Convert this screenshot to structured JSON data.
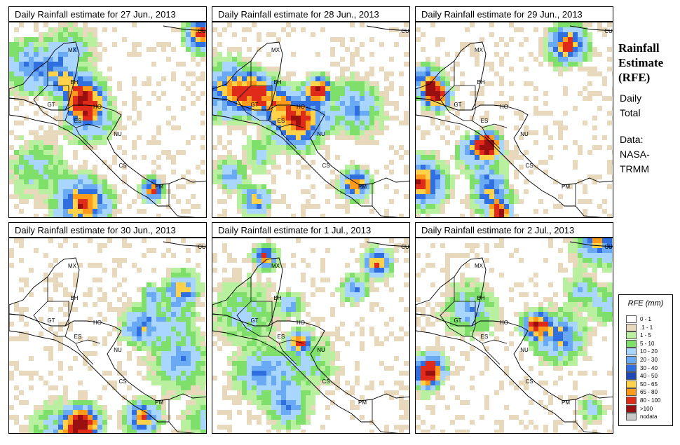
{
  "panels": [
    {
      "title": "Daily Rainfall estimate for  27 Jun., 2013",
      "seed": 11
    },
    {
      "title": "Daily Rainfall estimate for  28 Jun., 2013",
      "seed": 23
    },
    {
      "title": "Daily Rainfall estimate for  29 Jun., 2013",
      "seed": 37
    },
    {
      "title": "Daily Rainfall estimate for  30 Jun., 2013",
      "seed": 41
    },
    {
      "title": "Daily Rainfall estimate for  1 Jul., 2013",
      "seed": 53
    },
    {
      "title": "Daily Rainfall estimate for  2 Jul., 2013",
      "seed": 67
    }
  ],
  "country_labels": [
    "MX",
    "CU",
    "BH",
    "GT",
    "HO",
    "ES",
    "NU",
    "CS",
    "PM"
  ],
  "side": {
    "title_line1": "Rainfall",
    "title_line2": "Estimate",
    "title_line3": "(RFE)",
    "daily_line1": "Daily",
    "daily_line2": "Total",
    "data_line1": "Data:",
    "data_line2": "NASA-",
    "data_line3": "TRMM"
  },
  "legend": {
    "title": "RFE (mm)",
    "classes": [
      {
        "label": "0 - 1",
        "color": "#ffffff"
      },
      {
        "label": ".1 - 1",
        "color": "#e8d9bd"
      },
      {
        "label": "1 - 5",
        "color": "#b8f0a0"
      },
      {
        "label": "5 - 10",
        "color": "#7ee06a"
      },
      {
        "label": "10 - 20",
        "color": "#a9d6ff"
      },
      {
        "label": "20 - 30",
        "color": "#6aaaf5"
      },
      {
        "label": "30 - 40",
        "color": "#2f6fe0"
      },
      {
        "label": "40 - 50",
        "color": "#1f47b8"
      },
      {
        "label": "50 - 65",
        "color": "#ffd24a"
      },
      {
        "label": "65 - 80",
        "color": "#ff9a1a"
      },
      {
        "label": "80 - 100",
        "color": "#e02a1a"
      },
      {
        "label": ">100",
        "color": "#9a1010"
      },
      {
        "label": "nodata",
        "color": "#c8c8c8"
      }
    ]
  }
}
